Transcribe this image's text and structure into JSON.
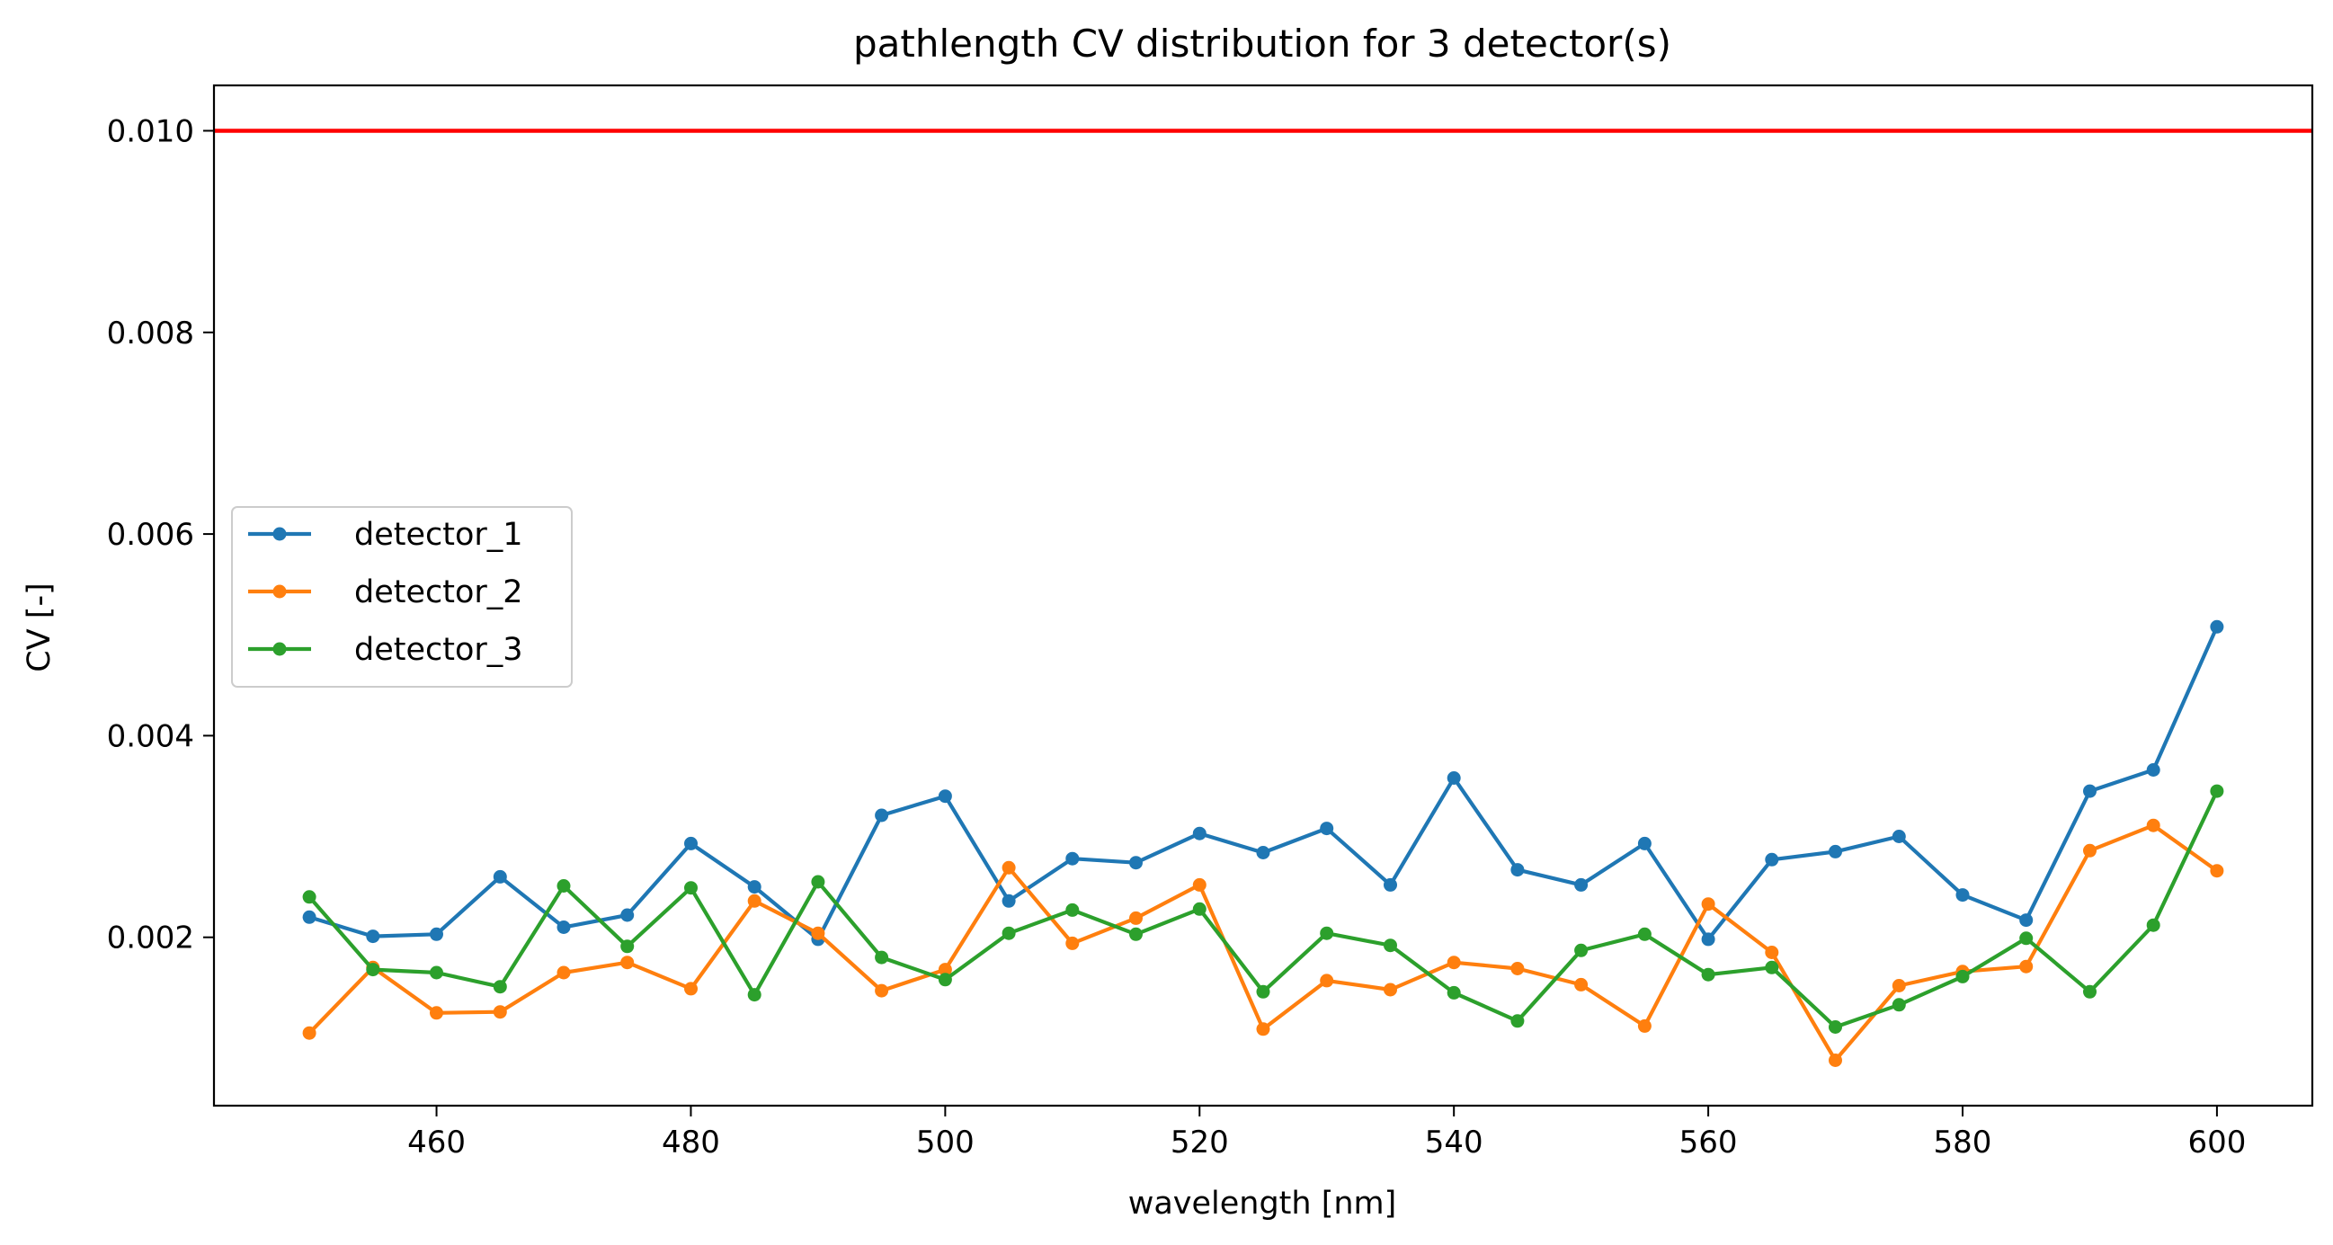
{
  "chart_data": {
    "type": "line",
    "title": "pathlength CV distribution for 3 detector(s)",
    "xlabel": "wavelength [nm]",
    "ylabel": "CV [-]",
    "xlim": [
      442.5,
      607.5
    ],
    "ylim": [
      0.00033,
      0.01045
    ],
    "xticks": [
      460,
      480,
      500,
      520,
      540,
      560,
      580,
      600
    ],
    "xtick_labels": [
      "460",
      "480",
      "500",
      "520",
      "540",
      "560",
      "580",
      "600"
    ],
    "yticks": [
      0.002,
      0.004,
      0.006,
      0.008,
      0.01
    ],
    "ytick_labels": [
      "0.002",
      "0.004",
      "0.006",
      "0.008",
      "0.010"
    ],
    "grid": false,
    "legend_position": "center-left",
    "x": [
      450,
      455,
      460,
      465,
      470,
      475,
      480,
      485,
      490,
      495,
      500,
      505,
      510,
      515,
      520,
      525,
      530,
      535,
      540,
      545,
      550,
      555,
      560,
      565,
      570,
      575,
      580,
      585,
      590,
      595,
      600
    ],
    "series": [
      {
        "name": "detector_1",
        "color": "#1f77b4",
        "values": [
          0.0022,
          0.00201,
          0.00203,
          0.0026,
          0.0021,
          0.00222,
          0.00293,
          0.0025,
          0.00198,
          0.00321,
          0.0034,
          0.00236,
          0.00278,
          0.00274,
          0.00303,
          0.00284,
          0.00308,
          0.00252,
          0.00358,
          0.00267,
          0.00252,
          0.00293,
          0.00198,
          0.00277,
          0.00285,
          0.003,
          0.00242,
          0.00217,
          0.00345,
          0.00366,
          0.00508
        ]
      },
      {
        "name": "detector_2",
        "color": "#ff7f0e",
        "values": [
          0.00105,
          0.0017,
          0.00125,
          0.00126,
          0.00165,
          0.00175,
          0.00149,
          0.00236,
          0.00204,
          0.00147,
          0.00168,
          0.00269,
          0.00194,
          0.00219,
          0.00252,
          0.00109,
          0.00157,
          0.00148,
          0.00175,
          0.00169,
          0.00153,
          0.00112,
          0.00233,
          0.00185,
          0.00078,
          0.00152,
          0.00166,
          0.00171,
          0.00286,
          0.00311,
          0.00266
        ]
      },
      {
        "name": "detector_3",
        "color": "#2ca02c",
        "values": [
          0.0024,
          0.00168,
          0.00165,
          0.00151,
          0.00251,
          0.00191,
          0.00249,
          0.00143,
          0.00255,
          0.0018,
          0.00158,
          0.00204,
          0.00227,
          0.00203,
          0.00228,
          0.00146,
          0.00204,
          0.00192,
          0.00145,
          0.00117,
          0.00187,
          0.00203,
          0.00163,
          0.0017,
          0.00111,
          0.00133,
          0.00161,
          0.00199,
          0.00146,
          0.00212,
          0.00345
        ]
      }
    ],
    "threshold_line": {
      "y": 0.01,
      "color": "#ff0000"
    }
  }
}
